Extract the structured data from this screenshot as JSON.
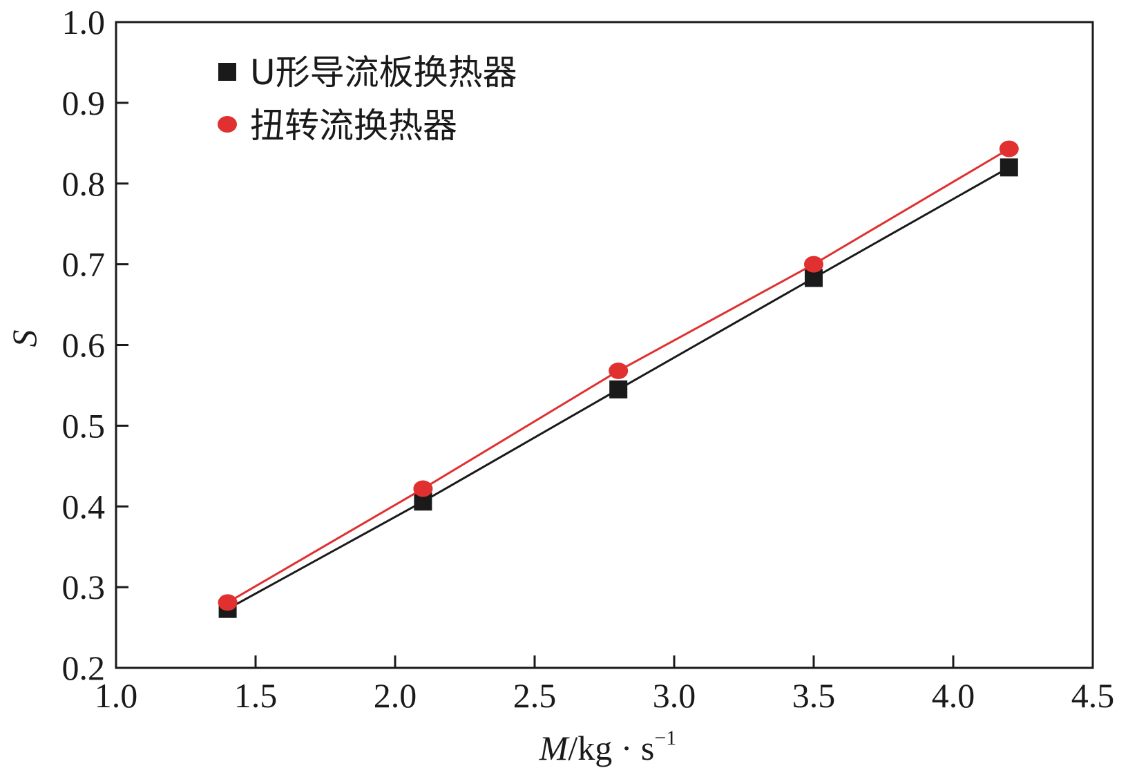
{
  "chart_data": {
    "type": "line",
    "xlabel_var": "M",
    "xlabel_unit": "/kg · s",
    "xlabel_exp": "−1",
    "ylabel": "S",
    "xlim": [
      1.0,
      4.5
    ],
    "ylim": [
      0.2,
      1.0
    ],
    "xticks": [
      "1.0",
      "1.5",
      "2.0",
      "2.5",
      "3.0",
      "3.5",
      "4.0",
      "4.5"
    ],
    "yticks": [
      "0.2",
      "0.3",
      "0.4",
      "0.5",
      "0.6",
      "0.7",
      "0.8",
      "0.9",
      "1.0"
    ],
    "grid": false,
    "legend_position": "top-left",
    "series": [
      {
        "name": "U形导流板换热器",
        "marker": "square",
        "color": "#1a1a1a",
        "x": [
          1.4,
          2.1,
          2.8,
          3.5,
          4.2
        ],
        "y": [
          0.273,
          0.406,
          0.545,
          0.683,
          0.82
        ]
      },
      {
        "name": "扭转流换热器",
        "marker": "circle",
        "color": "#e03030",
        "x": [
          1.4,
          2.1,
          2.8,
          3.5,
          4.2
        ],
        "y": [
          0.281,
          0.422,
          0.568,
          0.7,
          0.843
        ]
      }
    ]
  }
}
